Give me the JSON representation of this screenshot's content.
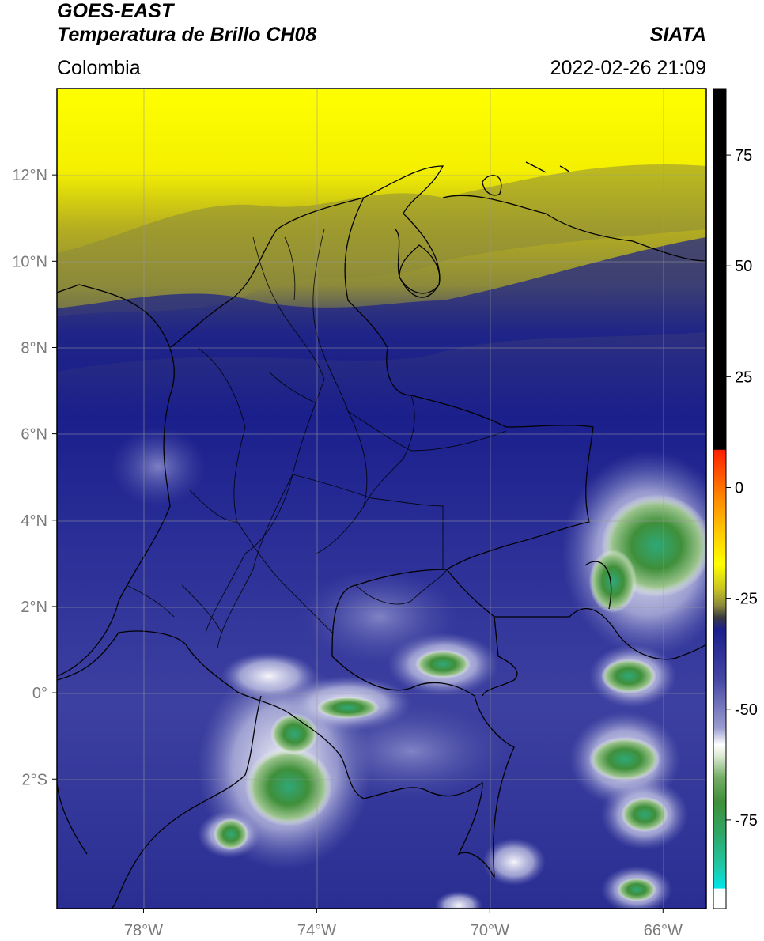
{
  "header": {
    "satellite": "GOES-EAST",
    "product": "Temperatura de Brillo CH08",
    "region": "Colombia",
    "source": "SIATA",
    "timestamp": "2022-02-26 21:09"
  },
  "map": {
    "lon_range": [
      -80,
      -65
    ],
    "lat_range": [
      -5,
      14
    ],
    "lon_ticks": [
      {
        "value": -78,
        "label": "78°W"
      },
      {
        "value": -74,
        "label": "74°W"
      },
      {
        "value": -70,
        "label": "70°W"
      },
      {
        "value": -66,
        "label": "66°W"
      }
    ],
    "lat_ticks": [
      {
        "value": 12,
        "label": "12°N"
      },
      {
        "value": 10,
        "label": "10°N"
      },
      {
        "value": 8,
        "label": "8°N"
      },
      {
        "value": 6,
        "label": "6°N"
      },
      {
        "value": 4,
        "label": "4°N"
      },
      {
        "value": 2,
        "label": "2°N"
      },
      {
        "value": 0,
        "label": "0°"
      },
      {
        "value": -2,
        "label": "2°S"
      }
    ],
    "grid": true
  },
  "colorbar": {
    "range": [
      -95,
      90
    ],
    "ticks": [
      {
        "value": 75,
        "label": "75"
      },
      {
        "value": 50,
        "label": "50"
      },
      {
        "value": 25,
        "label": "25"
      },
      {
        "value": 0,
        "label": "0"
      },
      {
        "value": -25,
        "label": "-25"
      },
      {
        "value": -50,
        "label": "-50"
      },
      {
        "value": -75,
        "label": "-75"
      }
    ],
    "colors": {
      "black": "#000000",
      "red": "#ff2000",
      "orange": "#ff9a00",
      "yellow": "#ffff00",
      "olive": "#8c8a3a",
      "navy": "#1a1f8c",
      "periwinkle": "#7d80c2",
      "white": "#ffffff",
      "green": "#3f8f3a",
      "teal": "#1fc9a8",
      "cyan": "#00e5ea"
    }
  }
}
